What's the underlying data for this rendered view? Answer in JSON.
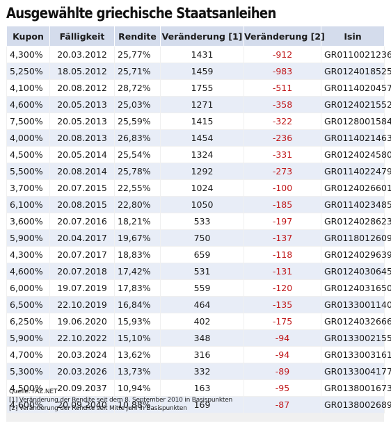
{
  "title": "Ausgewählte griechische Staatsanleihen",
  "table": {
    "headers": [
      "Kupon",
      "Fälligkeit",
      "Rendite",
      "Veränderung [1]",
      "Veränderung [2]",
      "Isin"
    ],
    "rows": [
      {
        "kupon": "4,300%",
        "faelligkeit": "20.03.2012",
        "rendite": "25,77%",
        "v1": "1431",
        "v2": "-912",
        "isin": "GR0110021236"
      },
      {
        "kupon": "5,250%",
        "faelligkeit": "18.05.2012",
        "rendite": "25,71%",
        "v1": "1459",
        "v2": "-983",
        "isin": "GR0124018525"
      },
      {
        "kupon": "4,100%",
        "faelligkeit": "20.08.2012",
        "rendite": "28,72%",
        "v1": "1755",
        "v2": "-511",
        "isin": "GR0114020457"
      },
      {
        "kupon": "4,600%",
        "faelligkeit": "20.05.2013",
        "rendite": "25,03%",
        "v1": "1271",
        "v2": "-358",
        "isin": "GR0124021552"
      },
      {
        "kupon": "7,500%",
        "faelligkeit": "20.05.2013",
        "rendite": "25,59%",
        "v1": "1415",
        "v2": "-322",
        "isin": "GR0128001584"
      },
      {
        "kupon": "4,000%",
        "faelligkeit": "20.08.2013",
        "rendite": "26,83%",
        "v1": "1454",
        "v2": "-236",
        "isin": "GR0114021463"
      },
      {
        "kupon": "4,500%",
        "faelligkeit": "20.05.2014",
        "rendite": "25,54%",
        "v1": "1324",
        "v2": "-331",
        "isin": "GR0124024580"
      },
      {
        "kupon": "5,500%",
        "faelligkeit": "20.08.2014",
        "rendite": "25,78%",
        "v1": "1292",
        "v2": "-273",
        "isin": "GR0114022479"
      },
      {
        "kupon": "3,700%",
        "faelligkeit": "20.07.2015",
        "rendite": "22,55%",
        "v1": "1024",
        "v2": "-100",
        "isin": "GR0124026601"
      },
      {
        "kupon": "6,100%",
        "faelligkeit": "20.08.2015",
        "rendite": "22,80%",
        "v1": "1050",
        "v2": "-185",
        "isin": "GR0114023485"
      },
      {
        "kupon": "3,600%",
        "faelligkeit": "20.07.2016",
        "rendite": "18,21%",
        "v1": "533",
        "v2": "-197",
        "isin": "GR0124028623"
      },
      {
        "kupon": "5,900%",
        "faelligkeit": "20.04.2017",
        "rendite": "19,67%",
        "v1": "750",
        "v2": "-137",
        "isin": "GR0118012609"
      },
      {
        "kupon": "4,300%",
        "faelligkeit": "20.07.2017",
        "rendite": "18,83%",
        "v1": "659",
        "v2": "-118",
        "isin": "GR0124029639"
      },
      {
        "kupon": "4,600%",
        "faelligkeit": "20.07.2018",
        "rendite": "17,42%",
        "v1": "531",
        "v2": "-131",
        "isin": "GR0124030645"
      },
      {
        "kupon": "6,000%",
        "faelligkeit": "19.07.2019",
        "rendite": "17,83%",
        "v1": "559",
        "v2": "-120",
        "isin": "GR0124031650"
      },
      {
        "kupon": "6,500%",
        "faelligkeit": "22.10.2019",
        "rendite": "16,84%",
        "v1": "464",
        "v2": "-135",
        "isin": "GR0133001140"
      },
      {
        "kupon": "6,250%",
        "faelligkeit": "19.06.2020",
        "rendite": "15,93%",
        "v1": "402",
        "v2": "-175",
        "isin": "GR0124032666"
      },
      {
        "kupon": "5,900%",
        "faelligkeit": "22.10.2022",
        "rendite": "15,10%",
        "v1": "348",
        "v2": "-94",
        "isin": "GR0133002155"
      },
      {
        "kupon": "4,700%",
        "faelligkeit": "20.03.2024",
        "rendite": "13,62%",
        "v1": "316",
        "v2": "-94",
        "isin": "GR0133003161"
      },
      {
        "kupon": "5,300%",
        "faelligkeit": "20.03.2026",
        "rendite": "13,73%",
        "v1": "332",
        "v2": "-89",
        "isin": "GR0133004177"
      },
      {
        "kupon": "4,500%",
        "faelligkeit": "20.09.2037",
        "rendite": "10,94%",
        "v1": "163",
        "v2": "-95",
        "isin": "GR0138001673"
      },
      {
        "kupon": "4,600%",
        "faelligkeit": "20.09.2040",
        "rendite": "10,88%",
        "v1": "169",
        "v2": "-87",
        "isin": "GR0138002689"
      }
    ]
  },
  "notes": {
    "source": "Quelle: FAZ.NET",
    "note1": "[1] Veränderung der Rendite seit dem 8. September 2010 in Basispunkten",
    "note2": "[2] Veränderung der Rendite seit Mitte Juni in Basispunkten"
  },
  "colors": {
    "header_bg": "#d4dcec",
    "row_alt_bg": "#e8edf7",
    "panel_bg": "#f0f0f0",
    "negative_text": "#c0181a"
  }
}
